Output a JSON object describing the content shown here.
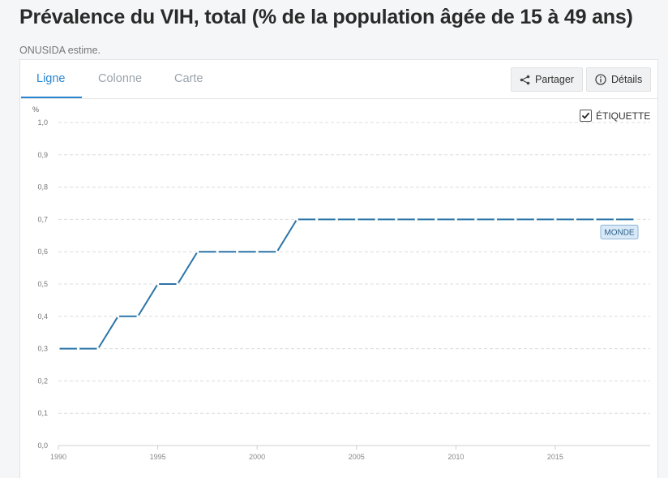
{
  "header": {
    "title": "Prévalence du VIH, total (% de la population âgée de 15 à 49 ans)",
    "source": "ONUSIDA estime."
  },
  "tabs": [
    {
      "label": "Ligne",
      "active": true
    },
    {
      "label": "Colonne",
      "active": false
    },
    {
      "label": "Carte",
      "active": false
    }
  ],
  "toolbar": {
    "share_label": "Partager",
    "details_label": "Détails",
    "label_toggle": "ÉTIQUETTE",
    "label_checked": true
  },
  "colors": {
    "line": "#2b75a8",
    "accent": "#2a86d1",
    "badge_bg": "#d9e9f7"
  },
  "chart_data": {
    "type": "line",
    "unit_label": "%",
    "xlim": [
      1990,
      2019
    ],
    "ylim": [
      0,
      1.0
    ],
    "x_ticks": [
      1990,
      1995,
      2000,
      2005,
      2010,
      2015
    ],
    "y_ticks": [
      "0,0",
      "0,1",
      "0,2",
      "0,3",
      "0,4",
      "0,5",
      "0,6",
      "0,7",
      "0,8",
      "0,9",
      "1,0"
    ],
    "grid": true,
    "series": [
      {
        "name": "MONDE",
        "x": [
          1990,
          1991,
          1992,
          1993,
          1994,
          1995,
          1996,
          1997,
          1998,
          1999,
          2000,
          2001,
          2002,
          2003,
          2004,
          2005,
          2006,
          2007,
          2008,
          2009,
          2010,
          2011,
          2012,
          2013,
          2014,
          2015,
          2016,
          2017,
          2018,
          2019
        ],
        "values": [
          0.3,
          0.3,
          0.3,
          0.4,
          0.4,
          0.5,
          0.5,
          0.6,
          0.6,
          0.6,
          0.6,
          0.6,
          0.7,
          0.7,
          0.7,
          0.7,
          0.7,
          0.7,
          0.7,
          0.7,
          0.7,
          0.7,
          0.7,
          0.7,
          0.7,
          0.7,
          0.7,
          0.7,
          0.7,
          0.7
        ]
      }
    ]
  }
}
